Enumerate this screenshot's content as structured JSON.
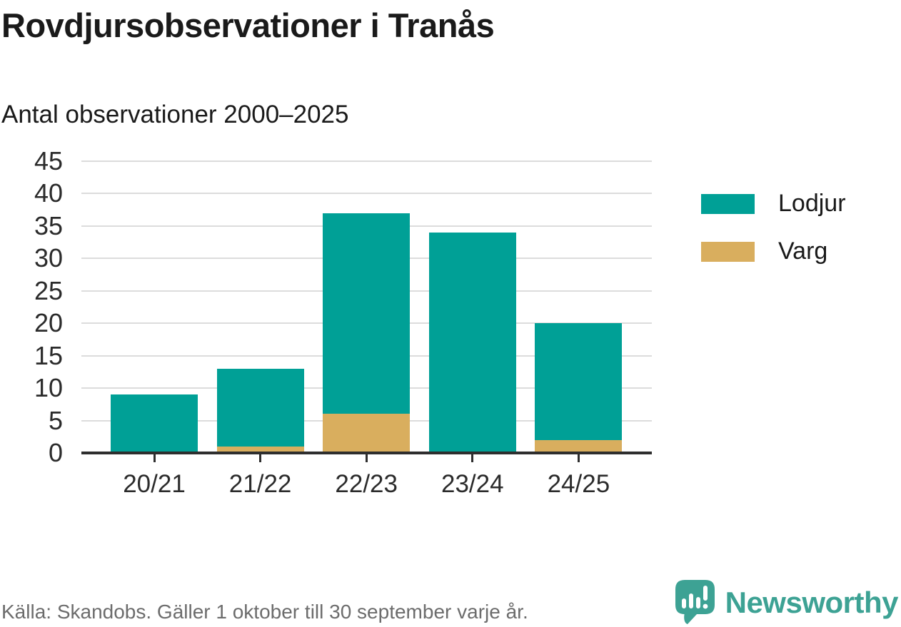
{
  "header": {
    "title": "Rovdjursobservationer i Tranås",
    "subtitle": "Antal observationer 2000–2025"
  },
  "chart_data": {
    "type": "bar",
    "stacked": true,
    "title": "Rovdjursobservationer i Tranås",
    "subtitle": "Antal observationer 2000–2025",
    "xlabel": "",
    "ylabel": "",
    "categories": [
      "20/21",
      "21/22",
      "22/23",
      "23/24",
      "24/25"
    ],
    "series": [
      {
        "name": "Lodjur",
        "color": "#00A096",
        "values": [
          9,
          12,
          31,
          34,
          18
        ]
      },
      {
        "name": "Varg",
        "color": "#D9AE5E",
        "values": [
          0,
          1,
          6,
          0,
          2
        ]
      }
    ],
    "stack_order": [
      "Varg",
      "Lodjur"
    ],
    "totals": [
      9,
      13,
      37,
      34,
      20
    ],
    "ylim": [
      0,
      45
    ],
    "ytick_step": 5,
    "yticks": [
      0,
      5,
      10,
      15,
      20,
      25,
      30,
      35,
      40,
      45
    ],
    "grid": "horizontal",
    "legend_position": "right"
  },
  "legend": {
    "items": [
      {
        "label": "Lodjur",
        "color": "#00A096"
      },
      {
        "label": "Varg",
        "color": "#D9AE5E"
      }
    ]
  },
  "footer": {
    "source": "Källa: Skandobs. Gäller 1 oktober till 30 september varje år.",
    "brand": "Newsworthy"
  },
  "colors": {
    "lodjur": "#00A096",
    "varg": "#D9AE5E",
    "grid": "#DCDCDC",
    "axis": "#2E2E2E",
    "text": "#1A1A1A",
    "muted_text": "#6C6C6C",
    "brand": "#3DA294"
  }
}
